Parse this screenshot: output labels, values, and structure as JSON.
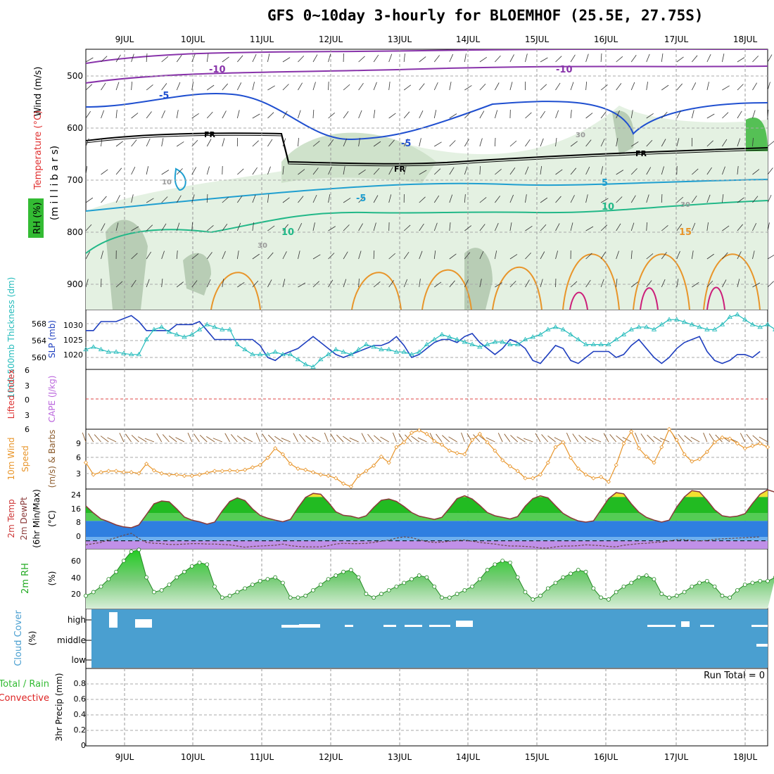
{
  "title": "GFS 0~10day 3-hourly for BLOEMHOF (25.5E, 27.75S)",
  "date_labels": [
    "9JUL",
    "10JUL",
    "11JUL",
    "12JUL",
    "13JUL",
    "14JUL",
    "15JUL",
    "16JUL",
    "17JUL",
    "18JUL"
  ],
  "colors": {
    "wind": "#000000",
    "temperature": "#e03030",
    "rh": "#22aa22",
    "slp": "#1f3fbf",
    "thickness": "#22bbbb",
    "lifted": "#dd3333",
    "cape": "#bb66dd",
    "wind10": "#e8952a",
    "speed": "#e8952a",
    "barbs": "#8b5a2b",
    "temp2m": "#cc3333",
    "cloud": "#4a9fd0",
    "precip_total": "#33bb33",
    "precip_conv": "#dd2222"
  },
  "panels": {
    "upper": {
      "ylabel_mb": "(m i l l i b a r s)",
      "label_wind": "Wind (m/s)",
      "label_temp": "Temperature (°C)",
      "label_rh": "RH (%)",
      "ticks": [
        "500",
        "600",
        "700",
        "800",
        "900"
      ],
      "contour_labels": [
        "-10",
        "-10",
        "-5",
        "-5",
        "-5",
        "5",
        "10",
        "10",
        "15",
        "FR",
        "FR",
        "FR",
        "30",
        "30",
        "30",
        "10"
      ]
    },
    "slp": {
      "label_thick": "1000-500mb Thickness (dm)",
      "label_slp": "SLP (mb)",
      "thick_ticks": [
        "568",
        "564",
        "560"
      ],
      "slp_ticks": [
        "1030",
        "1025",
        "1020"
      ]
    },
    "stability": {
      "label_li": "Lifted Index",
      "label_cape": "CAPE (J/kg)",
      "ticks": [
        "6",
        "3",
        "0",
        "3",
        "6"
      ]
    },
    "wind10": {
      "label_a": "10m Wind",
      "label_b": "Speed",
      "label_c": "(m/s) & Barbs",
      "ticks": [
        "9",
        "6",
        "3"
      ]
    },
    "temp": {
      "label_a": "2m Temp",
      "label_b": "2m DewPt",
      "label_c": "(6hr Min/Max)",
      "unit": "(°C)",
      "ticks": [
        "24",
        "16",
        "8",
        "0"
      ]
    },
    "rh2m": {
      "label": "2m RH",
      "unit": "(%)",
      "ticks": [
        "60",
        "40",
        "20"
      ]
    },
    "cloud": {
      "label": "Cloud Cover",
      "unit": "(%)",
      "ticks": [
        "high",
        "middle",
        "low"
      ]
    },
    "precip": {
      "label_a": "Total / Rain",
      "label_b": "Convective",
      "label_c": "3hr Precip (mm)",
      "ticks": [
        "0.8",
        "0.6",
        "0.4",
        "0.2",
        "0"
      ],
      "run_total": "Run Total = 0"
    }
  },
  "chart_data": [
    {
      "type": "line",
      "name": "slp_thickness",
      "x_unit": "3-hourly steps",
      "series": [
        {
          "name": "SLP (mb)",
          "axis": "right",
          "values": [
            1028,
            1028,
            1031,
            1031,
            1031,
            1032,
            1033,
            1031,
            1028,
            1028,
            1028,
            1028,
            1030,
            1030,
            1030,
            1031,
            1028,
            1025,
            1025,
            1025,
            1025,
            1025,
            1025,
            1023,
            1019,
            1018,
            1020,
            1021,
            1022,
            1024,
            1026,
            1024,
            1022,
            1020,
            1019,
            1020,
            1021,
            1022,
            1023,
            1023,
            1024,
            1026,
            1023,
            1019,
            1020,
            1022,
            1024,
            1025,
            1025,
            1024,
            1026,
            1027,
            1024,
            1022,
            1020,
            1022,
            1025,
            1024,
            1022,
            1018,
            1017,
            1020,
            1023,
            1022,
            1018,
            1017,
            1019,
            1021,
            1021,
            1021,
            1019,
            1020,
            1023,
            1025,
            1022,
            1019,
            1017,
            1019,
            1022,
            1024,
            1025,
            1026,
            1021,
            1018,
            1017,
            1018,
            1020,
            1020,
            1019,
            1021
          ]
        },
        {
          "name": "1000-500mb Thickness (dm)",
          "axis": "left",
          "values": [
            562,
            562.5,
            562,
            561.5,
            561.5,
            561.2,
            561,
            561,
            564,
            566,
            566.5,
            565.5,
            565,
            564.5,
            565,
            566,
            567,
            566.5,
            566,
            566,
            563,
            562,
            561,
            561,
            561,
            561.5,
            561,
            561,
            560,
            559,
            558.5,
            560,
            561,
            562,
            561.5,
            561,
            562,
            563,
            562.5,
            562,
            562,
            561.5,
            561.5,
            561,
            561.5,
            563,
            564,
            565,
            564.5,
            564,
            563.5,
            563,
            562.5,
            563,
            563.5,
            563.5,
            563,
            563,
            564,
            564.5,
            565,
            566,
            566.5,
            566,
            565,
            564,
            563,
            563,
            563,
            563,
            564,
            565,
            566,
            566.5,
            566.5,
            566,
            567,
            568,
            568,
            567.5,
            567,
            566.5,
            566,
            566,
            567,
            568.5,
            569,
            568,
            567,
            566.5,
            567,
            566,
            565
          ]
        }
      ],
      "thick_ylim": [
        558,
        570
      ],
      "slp_ylim": [
        1015,
        1035
      ]
    },
    {
      "type": "line",
      "name": "wind10_speed",
      "ylabel": "(m/s)",
      "ylim": [
        0,
        10
      ],
      "values": [
        5,
        3,
        3.4,
        3.6,
        3.6,
        3.4,
        3.4,
        3.2,
        4.8,
        3.7,
        3.2,
        3,
        3,
        2.8,
        2.8,
        3,
        3.3,
        3.6,
        3.6,
        3.7,
        3.6,
        3.8,
        4.2,
        4.6,
        5.8,
        7.4,
        6.4,
        4.8,
        4,
        3.8,
        3.4,
        3,
        2.8,
        2.4,
        1.5,
        1,
        2.8,
        3.6,
        4.5,
        6,
        5,
        7.6,
        8.4,
        10,
        10.4,
        9.8,
        8.6,
        8,
        7,
        6.6,
        6.4,
        8.8,
        9.8,
        8.4,
        7,
        5.4,
        4.4,
        3.6,
        2.4,
        2.4,
        3,
        5,
        7.6,
        8.4,
        5.8,
        4,
        3,
        2.4,
        2.6,
        1.8,
        4.6,
        8.2,
        10.2,
        7.4,
        6,
        5,
        7.6,
        10.6,
        8.8,
        6.4,
        5.2,
        5.6,
        6.8,
        8.4,
        9.2,
        9,
        8.2,
        7.4,
        7.8,
        8.2,
        7.6
      ]
    },
    {
      "type": "area",
      "name": "temp2m",
      "ylabel": "(°C)",
      "ylim": [
        -4,
        26
      ],
      "temperature": [
        17.5,
        14,
        11,
        9.6,
        8,
        7,
        6.6,
        8,
        13.2,
        18.6,
        20,
        19.6,
        16,
        12,
        10.4,
        9.6,
        8.4,
        9.4,
        15,
        19.8,
        21.6,
        20.2,
        16,
        12.8,
        11.4,
        10.4,
        9.6,
        10.8,
        16.6,
        21.8,
        23.8,
        23.4,
        19.4,
        14.6,
        12.8,
        12.4,
        11.4,
        12.6,
        16.8,
        20.4,
        21,
        19.8,
        17.2,
        14.2,
        12.4,
        11.6,
        10.8,
        11.8,
        16.4,
        21.2,
        22.6,
        21,
        17.8,
        14.2,
        12.6,
        11.8,
        11,
        12.2,
        17.4,
        21.2,
        22.6,
        21.6,
        17.6,
        13.8,
        11.6,
        10,
        9.4,
        10,
        15.6,
        21.2,
        24.2,
        23.6,
        18.6,
        14.4,
        11.8,
        10.4,
        9.4,
        10.4,
        17,
        22,
        25.2,
        24.6,
        20.4,
        15.6,
        12.6,
        12,
        12.4,
        13.6,
        18.8,
        23.4,
        25.6,
        24.4,
        20.2,
        16.6,
        15.6,
        15.4,
        15.2,
        14.6
      ],
      "dewpoint": [
        -2,
        -1.4,
        -0.8,
        0.6,
        1.6,
        2.8,
        3.8,
        1.2,
        -0.8,
        -1.2,
        -1.4,
        -1.8,
        -1.8,
        -1.6,
        -1.4,
        -1.4,
        -1.6,
        -1.6,
        -1.8,
        -2,
        -2.6,
        -3.2,
        -2.8,
        -2.6,
        -2.4,
        -2.2,
        -1.6,
        -2.4,
        -2.8,
        -3,
        -3,
        -3,
        -2.4,
        -1.6,
        -1.2,
        -1.4,
        -1.4,
        -1.2,
        -0.8,
        -0.2,
        0.4,
        1.4,
        2,
        1.6,
        0.6,
        -0.4,
        -0.8,
        -0.6,
        -0.2,
        0.2,
        0.4,
        -0.2,
        -0.8,
        -1.2,
        -1.6,
        -2.2,
        -2.6,
        -2.6,
        -2.8,
        -3,
        -3.6,
        -3.6,
        -3,
        -2.6,
        -2.6,
        -2.4,
        -2,
        -2.2,
        -2.4,
        -2.8,
        -3,
        -2.2,
        -1.8,
        -1.4,
        -1.2,
        -0.8,
        -0.6,
        0,
        0.6,
        0.6,
        0.2,
        0,
        0.2,
        0.8,
        1,
        1.2,
        1.4,
        1.6,
        1.8,
        2
      ]
    },
    {
      "type": "area",
      "name": "rh2m",
      "ylabel": "(%)",
      "ylim": [
        10,
        75
      ],
      "values": [
        24,
        28,
        34,
        42,
        50,
        62,
        72,
        74,
        44,
        28,
        30,
        36,
        44,
        50,
        56,
        60,
        58,
        34,
        22,
        24,
        28,
        32,
        36,
        40,
        42,
        44,
        38,
        22,
        22,
        24,
        30,
        36,
        42,
        46,
        50,
        52,
        44,
        26,
        22,
        26,
        30,
        34,
        38,
        42,
        46,
        44,
        34,
        22,
        22,
        26,
        30,
        34,
        42,
        52,
        58,
        62,
        60,
        44,
        28,
        20,
        24,
        32,
        38,
        44,
        48,
        52,
        50,
        32,
        22,
        20,
        28,
        34,
        38,
        44,
        46,
        42,
        26,
        22,
        24,
        28,
        34,
        38,
        40,
        34,
        24,
        22,
        30,
        36,
        38,
        40,
        40,
        44
      ]
    },
    {
      "type": "table",
      "name": "precip3hr",
      "ylabel": "3hr Precip (mm)",
      "ylim": [
        0,
        1
      ],
      "values": []
    }
  ]
}
